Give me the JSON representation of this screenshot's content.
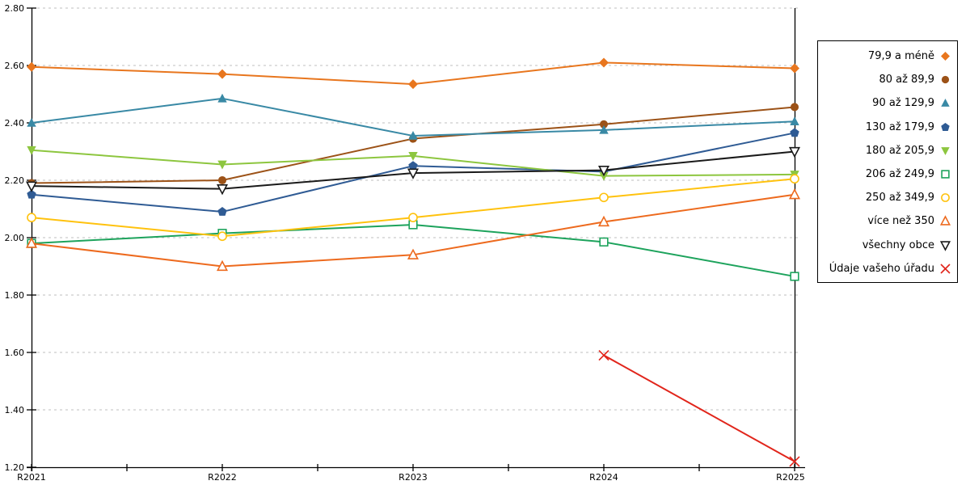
{
  "chart_data": {
    "type": "line",
    "categories": [
      "R2021",
      "R2022",
      "R2023",
      "R2024",
      "R2025"
    ],
    "ylim": [
      1.2,
      2.8
    ],
    "ytick_step": 0.2,
    "ytick_labels": [
      "2.80",
      "2.60",
      "2.40",
      "2.20",
      "2.00",
      "1.80",
      "1.60",
      "1.40",
      "1.20"
    ],
    "grid": "horizontal-dashed",
    "grid_color": "#bfbfbf",
    "axis_color": "#000000",
    "legend_position": "right",
    "title": "",
    "xlabel": "",
    "ylabel": "",
    "series": [
      {
        "name": "79,9 a méně",
        "color": "#e8761e",
        "marker": "diamond",
        "fill": "solid",
        "values": [
          2.595,
          2.57,
          2.535,
          2.61,
          2.59
        ]
      },
      {
        "name": "80 až 89,9",
        "color": "#9c5217",
        "marker": "circle",
        "fill": "solid",
        "values": [
          2.19,
          2.2,
          2.345,
          2.395,
          2.455
        ]
      },
      {
        "name": "90 až 129,9",
        "color": "#3989a5",
        "marker": "triangle-up",
        "fill": "solid",
        "values": [
          2.4,
          2.485,
          2.355,
          2.375,
          2.405
        ]
      },
      {
        "name": "130 až 179,9",
        "color": "#2f5b94",
        "marker": "pentagon",
        "fill": "solid",
        "values": [
          2.15,
          2.09,
          2.25,
          2.23,
          2.365
        ]
      },
      {
        "name": "180 až 205,9",
        "color": "#8dc63f",
        "marker": "triangle-down",
        "fill": "solid",
        "values": [
          2.305,
          2.255,
          2.285,
          2.215,
          2.22
        ]
      },
      {
        "name": "206 až 249,9",
        "color": "#1da35c",
        "marker": "square",
        "fill": "hollow",
        "values": [
          1.98,
          2.015,
          2.045,
          1.985,
          1.865
        ]
      },
      {
        "name": "250 až 349,9",
        "color": "#ffc20e",
        "marker": "circle",
        "fill": "hollow",
        "values": [
          2.07,
          2.005,
          2.07,
          2.14,
          2.205
        ]
      },
      {
        "name": "více než 350",
        "color": "#ed6a1e",
        "marker": "triangle-up",
        "fill": "hollow",
        "values": [
          1.98,
          1.9,
          1.94,
          2.055,
          2.15
        ]
      },
      {
        "name": "všechny obce",
        "color": "#1a1a1a",
        "marker": "triangle-down",
        "fill": "hollow",
        "values": [
          2.18,
          2.17,
          2.225,
          2.235,
          2.3
        ]
      },
      {
        "name": "Údaje vašeho úřadu",
        "color": "#e1251b",
        "marker": "x",
        "fill": "line",
        "values": [
          null,
          null,
          null,
          1.59,
          1.22
        ]
      }
    ]
  }
}
